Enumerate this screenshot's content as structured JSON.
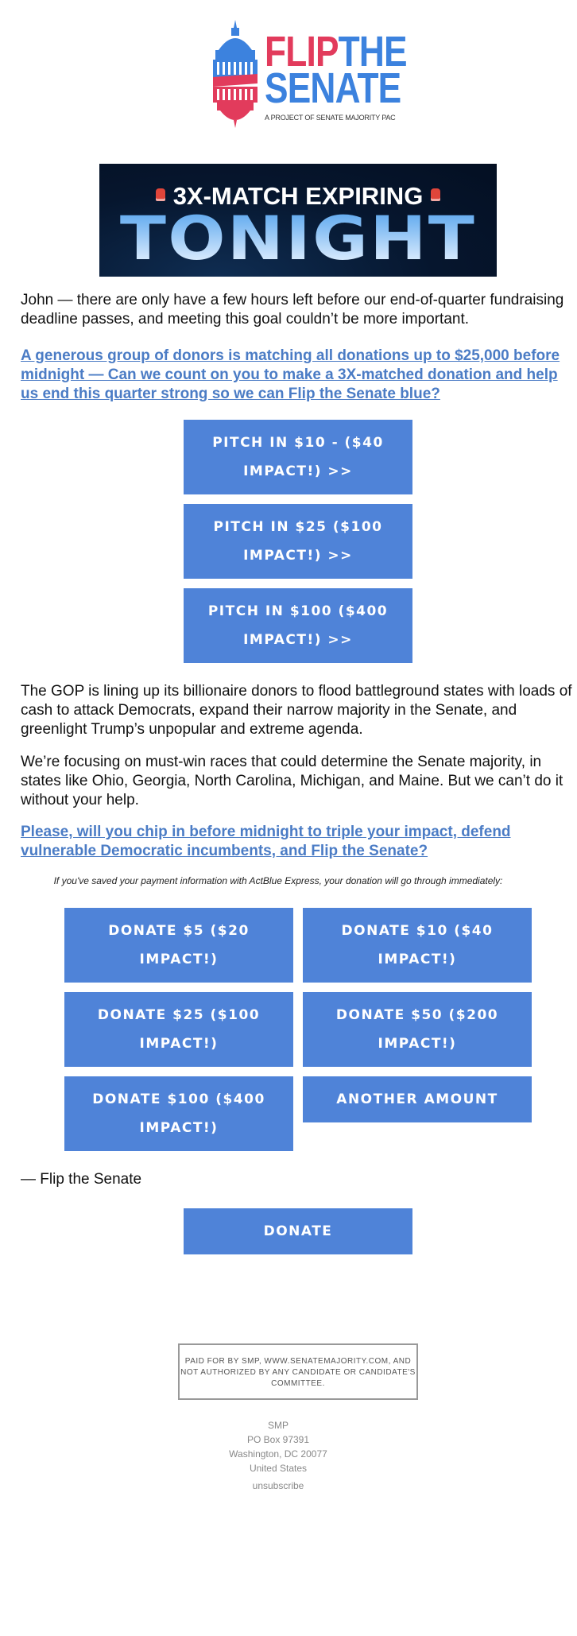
{
  "logo": {
    "word_flip": "FLIP",
    "word_the": "THE",
    "word_senate": "SENATE",
    "tagline": "A PROJECT OF SENATE MAJORITY PAC",
    "colors": {
      "red": "#e23b5c",
      "blue": "#3c82de"
    }
  },
  "banner": {
    "line1": "3X-MATCH EXPIRING",
    "line2": "TONIGHT",
    "icon": "siren-icon"
  },
  "body": {
    "intro": "John — there are only have a few hours left before our end-of-quarter fundraising deadline passes, and meeting this goal couldn’t be more important.",
    "link1": "A generous group of donors is matching all donations up to $25,000 before midnight — Can we count on you to make a 3X-matched donation and help us end this quarter strong so we can Flip the Senate blue?",
    "pitch_buttons": [
      "PITCH IN $10 - ($40 IMPACT!) >>",
      "PITCH IN $25 ($100 IMPACT!) >>",
      "PITCH IN $100 ($400 IMPACT!) >>"
    ],
    "para2": "The GOP is lining up its billionaire donors to flood battleground states with loads of cash to attack Democrats, expand their narrow majority in the Senate, and greenlight Trump’s unpopular and extreme agenda.",
    "para3": "We’re focusing on must-win races that could determine the Senate majority, in states like Ohio, Georgia, North Carolina, Michigan, and Maine. But we can’t do it without your help.",
    "link2": "Please, will you chip in before midnight to triple your impact, defend vulnerable Democratic incumbents, and Flip the Senate?",
    "express_note": "If you've saved your payment information with ActBlue Express, your donation will go through immediately:",
    "donate_grid": [
      "DONATE $5 ($20 IMPACT!)",
      "DONATE $10 ($40 IMPACT!)",
      "DONATE $25 ($100 IMPACT!)",
      "DONATE $50 ($200 IMPACT!)",
      "DONATE $100 ($400 IMPACT!)",
      "ANOTHER AMOUNT"
    ],
    "signoff": "— Flip the Senate",
    "donate": "DONATE"
  },
  "footer": {
    "disclaimer": "PAID FOR BY SMP, WWW.SENATEMAJORITY.COM, AND NOT AUTHORIZED BY ANY CANDIDATE OR CANDIDATE'S COMMITTEE.",
    "address": [
      "SMP",
      "PO Box 97391",
      "Washington, DC 20077",
      "United States"
    ],
    "unsubscribe": "unsubscribe"
  },
  "colors": {
    "button": "#4f83d8",
    "link": "#4b7cc5"
  }
}
